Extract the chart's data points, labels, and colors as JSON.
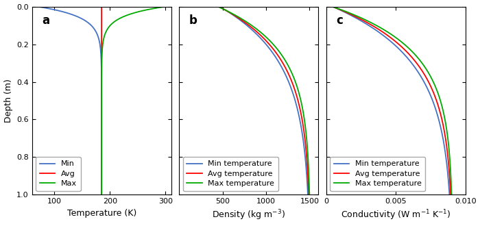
{
  "panel_a": {
    "label": "a",
    "xlabel": "Temperature (K)",
    "ylabel": "Depth (m)",
    "xlim": [
      60,
      310
    ],
    "ylim": [
      1.0,
      0.0
    ],
    "xticks": [
      100,
      200,
      300
    ],
    "yticks": [
      0,
      0.2,
      0.4,
      0.6,
      0.8,
      1.0
    ],
    "legend_labels": [
      "Min",
      "Avg",
      "Max"
    ],
    "legend_colors": [
      "#4472C4",
      "#FF0000",
      "#00AA00"
    ],
    "T_min_surface": 70,
    "T_avg_surface": 185,
    "T_max_surface": 300,
    "T_deep": 185,
    "scale_min": 0.055,
    "scale_avg": 0.035,
    "scale_max": 0.05
  },
  "panel_b": {
    "label": "b",
    "xlabel": "Density (kg m$^{-3}$)",
    "xlim": [
      0,
      1600
    ],
    "ylim": [
      1.0,
      0.0
    ],
    "xticks": [
      500,
      1000,
      1500
    ],
    "yticks": [
      0,
      0.2,
      0.4,
      0.6,
      0.8,
      1.0
    ],
    "legend_labels": [
      "Min temperature",
      "Avg temperature",
      "Max temperature"
    ],
    "legend_colors": [
      "#4472C4",
      "#FF0000",
      "#00AA00"
    ],
    "rho_surface_min": 465,
    "rho_surface_avg": 455,
    "rho_surface_max": 445,
    "rho_deep": 1510,
    "scale_min": 0.28,
    "scale_avg": 0.25,
    "scale_max": 0.22
  },
  "panel_c": {
    "label": "c",
    "xlabel": "Conductivity (W m$^{-1}$ K$^{-1}$)",
    "xlim": [
      0,
      0.01
    ],
    "ylim": [
      1.0,
      0.0
    ],
    "xticks": [
      0,
      0.005,
      0.01
    ],
    "ytick_labels": [
      "0",
      "0.005",
      "0.010"
    ],
    "yticks": [
      0,
      0.2,
      0.4,
      0.6,
      0.8,
      1.0
    ],
    "legend_labels": [
      "Min temperature",
      "Avg temperature",
      "Max temperature"
    ],
    "legend_colors": [
      "#4472C4",
      "#FF0000",
      "#00AA00"
    ],
    "k_surface_min": 0.00045,
    "k_surface_avg": 0.00044,
    "k_surface_max": 0.00043,
    "k_deep": 0.0091,
    "scale_min": 0.28,
    "scale_avg": 0.25,
    "scale_max": 0.22
  },
  "figsize": [
    7.0,
    3.3
  ],
  "dpi": 100,
  "bg_color": "#FFFFFF"
}
